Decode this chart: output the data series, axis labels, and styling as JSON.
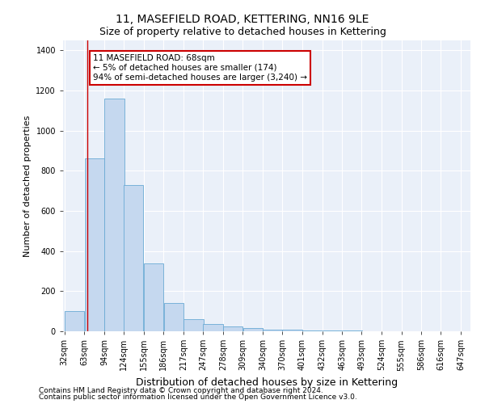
{
  "title": "11, MASEFIELD ROAD, KETTERING, NN16 9LE",
  "subtitle": "Size of property relative to detached houses in Kettering",
  "xlabel": "Distribution of detached houses by size in Kettering",
  "ylabel": "Number of detached properties",
  "footnote1": "Contains HM Land Registry data © Crown copyright and database right 2024.",
  "footnote2": "Contains public sector information licensed under the Open Government Licence v3.0.",
  "annotation_line1": "11 MASEFIELD ROAD: 68sqm",
  "annotation_line2": "← 5% of detached houses are smaller (174)",
  "annotation_line3": "94% of semi-detached houses are larger (3,240) →",
  "bar_left_edges": [
    32,
    63,
    94,
    124,
    155,
    186,
    217,
    247,
    278,
    309,
    340,
    370,
    401,
    432,
    463,
    493,
    524,
    555,
    586,
    616
  ],
  "bar_widths": [
    31,
    31,
    31,
    31,
    31,
    31,
    31,
    31,
    31,
    31,
    31,
    31,
    31,
    31,
    31,
    31,
    31,
    31,
    31,
    31
  ],
  "bar_heights": [
    100,
    860,
    1160,
    730,
    340,
    140,
    60,
    35,
    25,
    15,
    10,
    8,
    5,
    4,
    3,
    2,
    2,
    1,
    1,
    1
  ],
  "bar_color": "#c5d8ef",
  "bar_edge_color": "#6aaad4",
  "vline_x": 68,
  "vline_color": "#cc0000",
  "annotation_box_color": "#cc0000",
  "ylim": [
    0,
    1450
  ],
  "yticks": [
    0,
    200,
    400,
    600,
    800,
    1000,
    1200,
    1400
  ],
  "xtick_labels": [
    "32sqm",
    "63sqm",
    "94sqm",
    "124sqm",
    "155sqm",
    "186sqm",
    "217sqm",
    "247sqm",
    "278sqm",
    "309sqm",
    "340sqm",
    "370sqm",
    "401sqm",
    "432sqm",
    "463sqm",
    "493sqm",
    "524sqm",
    "555sqm",
    "586sqm",
    "616sqm",
    "647sqm"
  ],
  "bg_color": "#ffffff",
  "plot_bg_color": "#eaf0f9",
  "grid_color": "#ffffff",
  "title_fontsize": 10,
  "subtitle_fontsize": 9,
  "xlabel_fontsize": 9,
  "ylabel_fontsize": 8,
  "tick_fontsize": 7,
  "annotation_fontsize": 7.5,
  "footnote_fontsize": 6.5
}
